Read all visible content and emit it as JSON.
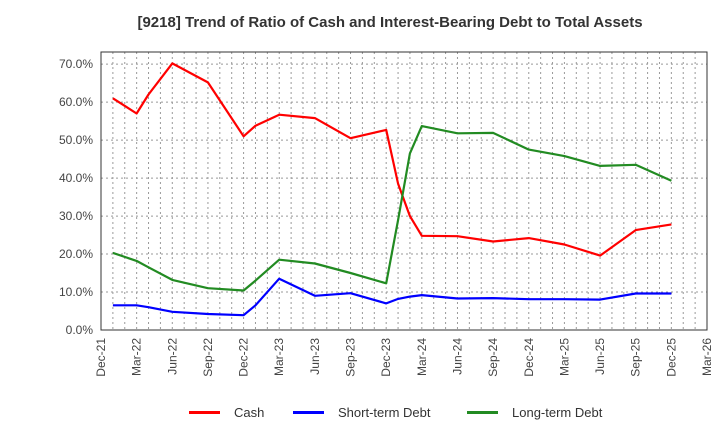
{
  "title": "[9218]  Trend of Ratio of Cash and Interest-Bearing Debt to Total Assets",
  "colors": {
    "cash": "#ff0000",
    "short_term_debt": "#0000ff",
    "long_term_debt": "#228b22",
    "grid": "#999999",
    "axis": "#333333"
  },
  "legend": [
    {
      "label": "Cash",
      "color": "#ff0000"
    },
    {
      "label": "Short-term Debt",
      "color": "#0000ff"
    },
    {
      "label": "Long-term Debt",
      "color": "#228b22"
    }
  ],
  "chart_data": {
    "type": "line",
    "title": "[9218]  Trend of Ratio of Cash and Interest-Bearing Debt to Total Assets",
    "xlabel": "",
    "ylabel": "",
    "ylim": [
      0,
      70
    ],
    "yticks": [
      "0.0%",
      "10.0%",
      "20.0%",
      "30.0%",
      "40.0%",
      "50.0%",
      "60.0%",
      "70.0%"
    ],
    "xticks": [
      "Dec-21",
      "Mar-22",
      "Jun-22",
      "Sep-22",
      "Dec-22",
      "Mar-23",
      "Jun-23",
      "Sep-23",
      "Dec-23",
      "Mar-24",
      "Jun-24",
      "Sep-24",
      "Dec-24",
      "Mar-25",
      "Jun-25",
      "Sep-25",
      "Dec-25",
      "Mar-26"
    ],
    "grid": true,
    "legend_position": "bottom",
    "x": [
      "Jan-22",
      "Mar-22",
      "Apr-22",
      "Jun-22",
      "Sep-22",
      "Dec-22",
      "Jan-23",
      "Mar-23",
      "Jun-23",
      "Sep-23",
      "Dec-23",
      "Jan-24",
      "Feb-24",
      "Mar-24",
      "Jun-24",
      "Sep-24",
      "Dec-24",
      "Mar-25",
      "Jun-25",
      "Sep-25",
      "Dec-25"
    ],
    "x_month_index": [
      1,
      3,
      4,
      6,
      9,
      12,
      13,
      15,
      18,
      21,
      24,
      25,
      26,
      27,
      30,
      33,
      36,
      39,
      42,
      45,
      48
    ],
    "series": [
      {
        "name": "Cash",
        "color": "#ff0000",
        "values": [
          61.0,
          57.0,
          62.0,
          70.2,
          65.2,
          51.0,
          53.8,
          56.7,
          55.8,
          50.5,
          52.7,
          38.5,
          30.0,
          24.8,
          24.7,
          23.3,
          24.2,
          22.5,
          19.6,
          26.3,
          27.8
        ]
      },
      {
        "name": "Short-term Debt",
        "color": "#0000ff",
        "values": [
          6.5,
          6.5,
          6.0,
          4.8,
          4.2,
          3.9,
          6.5,
          13.5,
          9.0,
          9.7,
          7.0,
          8.2,
          8.8,
          9.2,
          8.3,
          8.4,
          8.1,
          8.1,
          8.0,
          9.6,
          9.6
        ]
      },
      {
        "name": "Long-term Debt",
        "color": "#228b22",
        "values": [
          20.3,
          18.2,
          16.5,
          13.2,
          11.0,
          10.4,
          13.0,
          18.5,
          17.5,
          15.0,
          12.3,
          29.0,
          46.5,
          53.7,
          51.8,
          51.9,
          47.5,
          45.8,
          43.2,
          43.5,
          39.3
        ]
      }
    ]
  }
}
